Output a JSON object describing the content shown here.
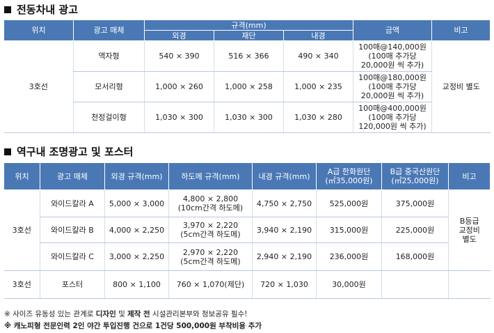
{
  "section1": {
    "title": "전동차내 광고",
    "headers": {
      "location": "위치",
      "media": "광고 매체",
      "spec": "규격(mm)",
      "outer": "외경",
      "cut": "재단",
      "inner": "내경",
      "price": "금액",
      "note": "비고"
    },
    "location_value": "3호선",
    "note_value": "교정비 별도",
    "rows": [
      {
        "media": "액자형",
        "outer": "540 × 390",
        "cut": "516 × 366",
        "inner": "490 × 340",
        "price_line1": "100매@140,000원",
        "price_line2": "(100매 추가당",
        "price_line3": "20,000원 씩 추가)"
      },
      {
        "media": "모서리형",
        "outer": "1,000 × 260",
        "cut": "1,000 × 258",
        "inner": "1,000 × 235",
        "price_line1": "100매@180,000원",
        "price_line2": "(100매 추가당",
        "price_line3": "20,000원 씩 추가)"
      },
      {
        "media": "천정걸이형",
        "outer": "1,030 × 300",
        "cut": "1,030 × 300",
        "inner": "1,030 × 280",
        "price_line1": "100매@400,000원",
        "price_line2": "(100매 추가당",
        "price_line3": "120,000원 씩 추가)"
      }
    ]
  },
  "section2": {
    "title": "역구내 조명광고 및 포스터",
    "headers": {
      "location": "위치",
      "media": "광고 매체",
      "outer": "외경 규격(mm)",
      "hadome": "하도메 규격(mm)",
      "inner": "내경 규격(mm)",
      "gradeA_line1": "A급 한화원단",
      "gradeA_line2": "(㎡35,000원)",
      "gradeB_line1": "B급 중국산원단",
      "gradeB_line2": "(㎡25,000원)",
      "note": "비고"
    },
    "location_value": "3호선",
    "note_line1": "B등급",
    "note_line2": "교정비",
    "note_line3": "별도",
    "rows": [
      {
        "media": "와이드칼라 A",
        "outer": "5,000 × 3,000",
        "hadome_line1": "4,800 × 2,800",
        "hadome_line2": "(10cm간격 하도메)",
        "inner": "4,750 × 2,750",
        "gradeA": "525,000원",
        "gradeB": "375,000원"
      },
      {
        "media": "와이드칼라 B",
        "outer": "4,000 × 2,250",
        "hadome_line1": "3,970 × 2,220",
        "hadome_line2": "(5cm간격 하도메)",
        "inner": "3,940 × 2,190",
        "gradeA": "315,000원",
        "gradeB": "225,000원"
      },
      {
        "media": "와이드칼라 C",
        "outer": "3,000 × 2,250",
        "hadome_line1": "2,970 × 2,220",
        "hadome_line2": "(5cm간격 하도메)",
        "inner": "2,940 × 2,190",
        "gradeA": "236,000원",
        "gradeB": "168,000원"
      }
    ],
    "poster_row": {
      "location": "3호선",
      "media": "포스터",
      "outer": "800 × 1,100",
      "hadome": "760 × 1,070(제단)",
      "inner": "720 × 1,030",
      "gradeA": "30,000원",
      "gradeB": ""
    }
  },
  "notes": {
    "line1_pre": "※ 사이즈 유동성 있는 관계로 ",
    "line1_bold1": "디자인",
    "line1_mid1": " 및 ",
    "line1_bold2": "제작 전",
    "line1_post": " 시설관리본부와 정보공유 필수!",
    "line2": "※ 캐노피형 전문인력 2인 야간 투입진행 건으로 1건당 500,000원 부착비용 추가"
  }
}
